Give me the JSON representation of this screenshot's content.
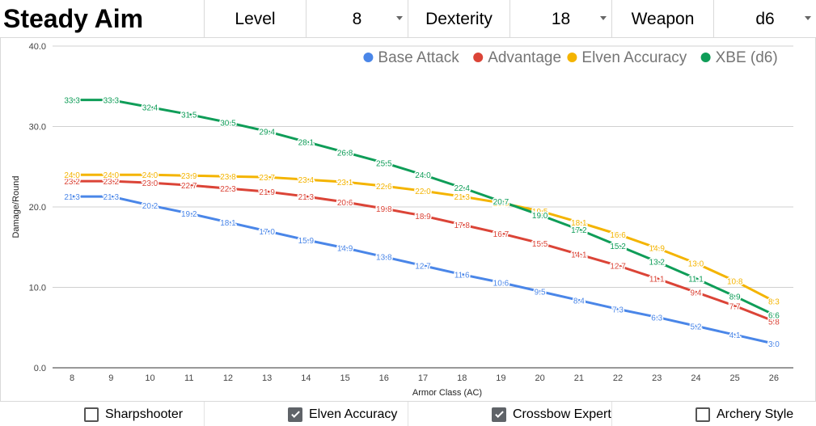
{
  "header": {
    "title": "Steady Aim",
    "level_label": "Level",
    "level_value": "8",
    "dexterity_label": "Dexterity",
    "dexterity_value": "18",
    "weapon_label": "Weapon",
    "weapon_value": "d6"
  },
  "options": [
    {
      "label": "Sharpshooter",
      "checked": false
    },
    {
      "label": "Elven Accuracy",
      "checked": true
    },
    {
      "label": "Crossbow Expert",
      "checked": true
    },
    {
      "label": "Archery Style",
      "checked": false
    }
  ],
  "chart_data": {
    "type": "line",
    "title": "",
    "xlabel": "Armor Class (AC)",
    "ylabel": "Damage/Round",
    "categories": [
      "8",
      "9",
      "10",
      "11",
      "12",
      "13",
      "14",
      "15",
      "16",
      "17",
      "18",
      "19",
      "20",
      "21",
      "22",
      "23",
      "24",
      "25",
      "26"
    ],
    "ylim": [
      0,
      40
    ],
    "yticks": [
      "0.0",
      "10.0",
      "20.0",
      "30.0",
      "40.0"
    ],
    "legend_position": "top-right",
    "series": [
      {
        "name": "Base Attack",
        "color": "#4a86e8",
        "values": [
          21.3,
          21.3,
          20.2,
          19.2,
          18.1,
          17.0,
          15.9,
          14.9,
          13.8,
          12.7,
          11.6,
          10.6,
          9.5,
          8.4,
          7.3,
          6.3,
          5.2,
          4.1,
          3.0
        ]
      },
      {
        "name": "Advantage",
        "color": "#db4437",
        "values": [
          23.2,
          23.2,
          23.0,
          22.7,
          22.3,
          21.9,
          21.3,
          20.6,
          19.8,
          18.9,
          17.8,
          16.7,
          15.5,
          14.1,
          12.7,
          11.1,
          9.4,
          7.7,
          5.8
        ]
      },
      {
        "name": "Elven Accuracy",
        "color": "#f4b400",
        "values": [
          24.0,
          24.0,
          24.0,
          23.9,
          23.8,
          23.7,
          23.4,
          23.1,
          22.6,
          22.0,
          21.3,
          20.5,
          19.5,
          18.1,
          16.6,
          14.9,
          13.0,
          10.8,
          8.3
        ]
      },
      {
        "name": "XBE (d6)",
        "color": "#0f9d58",
        "values": [
          33.3,
          33.3,
          32.4,
          31.5,
          30.5,
          29.4,
          28.1,
          26.8,
          25.5,
          24.0,
          22.4,
          20.7,
          19.0,
          17.2,
          15.2,
          13.2,
          11.1,
          8.9,
          6.6
        ]
      }
    ]
  }
}
